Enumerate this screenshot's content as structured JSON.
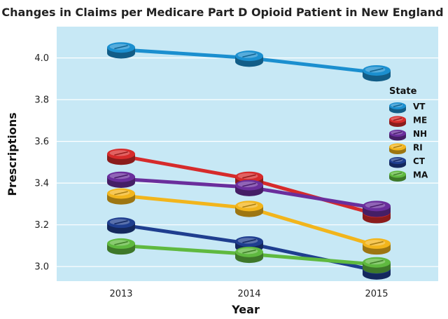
{
  "chart_data": {
    "type": "line",
    "title": "Changes in Claims per Medicare Part D Opioid Patient in New England",
    "xlabel": "Year",
    "ylabel": "Prescriptions",
    "categories": [
      "2013",
      "2014",
      "2015"
    ],
    "ylim": [
      2.93,
      4.15
    ],
    "yticks": [
      "3.0",
      "3.2",
      "3.4",
      "3.6",
      "3.8",
      "4.0"
    ],
    "grid": true,
    "legend": {
      "title": "State",
      "placement": "right"
    },
    "series": [
      {
        "name": "VT",
        "color": "#1b8fcf",
        "values": [
          4.04,
          4.0,
          3.93
        ]
      },
      {
        "name": "ME",
        "color": "#d62b2b",
        "values": [
          3.53,
          3.42,
          3.25
        ]
      },
      {
        "name": "NH",
        "color": "#6a2e9c",
        "values": [
          3.42,
          3.38,
          3.28
        ]
      },
      {
        "name": "RI",
        "color": "#f2b51c",
        "values": [
          3.34,
          3.28,
          3.1
        ]
      },
      {
        "name": "CT",
        "color": "#1f3e8f",
        "values": [
          3.2,
          3.11,
          2.98
        ]
      },
      {
        "name": "MA",
        "color": "#5fb93f",
        "values": [
          3.1,
          3.06,
          3.01
        ]
      }
    ]
  }
}
